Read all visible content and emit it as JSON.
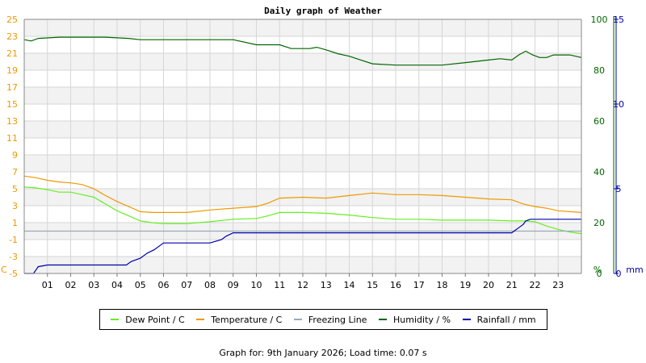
{
  "chart_data": {
    "type": "line",
    "title": "Daily graph of Weather",
    "x_ticks": [
      "01",
      "02",
      "03",
      "04",
      "05",
      "06",
      "07",
      "08",
      "09",
      "10",
      "11",
      "12",
      "13",
      "14",
      "15",
      "16",
      "17",
      "18",
      "19",
      "20",
      "21",
      "22",
      "23"
    ],
    "xlim": [
      0,
      24
    ],
    "axes": {
      "left": {
        "label": "C",
        "ticks": [
          "25",
          "23",
          "21",
          "19",
          "17",
          "15",
          "13",
          "11",
          "9",
          "7",
          "5",
          "3",
          "1",
          "-1",
          "-3",
          "-5"
        ],
        "range": [
          -5,
          25
        ],
        "color": "#ee9900"
      },
      "humidity": {
        "label": "%",
        "ticks": [
          "100",
          "80",
          "60",
          "40",
          "20",
          "0"
        ],
        "range": [
          0,
          100
        ],
        "color": "#006600"
      },
      "rain": {
        "label": "mm",
        "ticks": [
          "15",
          "10",
          "5",
          "0"
        ],
        "range": [
          0,
          15
        ],
        "color": "#0000aa"
      }
    },
    "grid": true,
    "legend_position": "bottom",
    "series": [
      {
        "name": "Dew Point / C",
        "axis": "left",
        "color": "#66ee22",
        "x": [
          0,
          0.5,
          1,
          1.5,
          2,
          2.5,
          3,
          3.5,
          4,
          4.5,
          5,
          5.5,
          6,
          7,
          8,
          9,
          10,
          10.5,
          11,
          12,
          13,
          14,
          15,
          16,
          17,
          18,
          19,
          20,
          21,
          21.5,
          22,
          22.5,
          23,
          23.5,
          24
        ],
        "y": [
          5.2,
          5.1,
          4.9,
          4.6,
          4.6,
          4.3,
          4.0,
          3.2,
          2.4,
          1.8,
          1.2,
          1.0,
          0.9,
          0.9,
          1.1,
          1.4,
          1.5,
          1.8,
          2.2,
          2.2,
          2.1,
          1.9,
          1.6,
          1.4,
          1.4,
          1.3,
          1.3,
          1.3,
          1.2,
          1.2,
          1.1,
          0.6,
          0.2,
          -0.1,
          -0.3
        ]
      },
      {
        "name": "Temperature / C",
        "axis": "left",
        "color": "#ee9900",
        "x": [
          0,
          0.5,
          1,
          1.5,
          2,
          2.5,
          3,
          3.5,
          4,
          4.5,
          5,
          5.5,
          6,
          7,
          8,
          9,
          10,
          10.5,
          11,
          12,
          13,
          14,
          15,
          16,
          17,
          18,
          19,
          20,
          21,
          21.5,
          22,
          22.5,
          23,
          23.5,
          24
        ],
        "y": [
          6.5,
          6.3,
          6.0,
          5.8,
          5.7,
          5.5,
          5.0,
          4.2,
          3.5,
          2.9,
          2.3,
          2.2,
          2.2,
          2.2,
          2.5,
          2.7,
          2.9,
          3.3,
          3.9,
          4.0,
          3.9,
          4.2,
          4.5,
          4.3,
          4.3,
          4.2,
          4.0,
          3.8,
          3.7,
          3.2,
          2.9,
          2.7,
          2.4,
          2.3,
          2.2
        ]
      },
      {
        "name": "Freezing Line",
        "axis": "left",
        "color": "#99aabb",
        "x": [
          0,
          24
        ],
        "y": [
          0,
          0
        ]
      },
      {
        "name": "Humidity / %",
        "axis": "humidity",
        "color": "#006600",
        "x": [
          0,
          0.3,
          0.6,
          1.5,
          2.5,
          3.5,
          4.5,
          5,
          6,
          7,
          8,
          9,
          10,
          11,
          11.5,
          12.3,
          12.6,
          13,
          13.5,
          14,
          14.5,
          15,
          16,
          17,
          18,
          19,
          19.5,
          20,
          20.5,
          21,
          21.3,
          21.6,
          21.9,
          22.2,
          22.5,
          22.8,
          23,
          23.5,
          24
        ],
        "y": [
          92,
          91.5,
          92.5,
          93,
          93,
          93,
          92.5,
          92,
          92,
          92,
          92,
          92,
          90,
          90,
          88.5,
          88.5,
          89,
          88,
          86.5,
          85.5,
          84,
          82.5,
          82,
          82,
          82,
          83,
          83.5,
          84,
          84.5,
          84,
          86,
          87.5,
          86,
          85,
          85,
          86,
          86,
          86,
          85
        ]
      },
      {
        "name": "Rainfall / mm",
        "axis": "rain",
        "color": "#0000aa",
        "x": [
          0,
          0.4,
          0.5,
          0.6,
          1,
          4.4,
          4.6,
          4.8,
          5,
          5.3,
          5.6,
          5.9,
          6,
          7,
          8,
          8.5,
          8.7,
          9,
          10,
          11,
          12,
          13,
          14,
          15,
          16,
          17,
          18,
          19,
          20,
          21,
          21.1,
          21.3,
          21.5,
          21.6,
          21.8,
          22,
          23,
          24
        ],
        "y": [
          0,
          0,
          0.2,
          0.4,
          0.5,
          0.5,
          0.7,
          0.8,
          0.9,
          1.2,
          1.4,
          1.7,
          1.8,
          1.8,
          1.8,
          2.0,
          2.2,
          2.4,
          2.4,
          2.4,
          2.4,
          2.4,
          2.4,
          2.4,
          2.4,
          2.4,
          2.4,
          2.4,
          2.4,
          2.4,
          2.5,
          2.7,
          2.9,
          3.1,
          3.2,
          3.2,
          3.2,
          3.2
        ]
      }
    ]
  },
  "footer": {
    "text": "Graph for: 9th January 2026; Load time: 0.07 s"
  }
}
